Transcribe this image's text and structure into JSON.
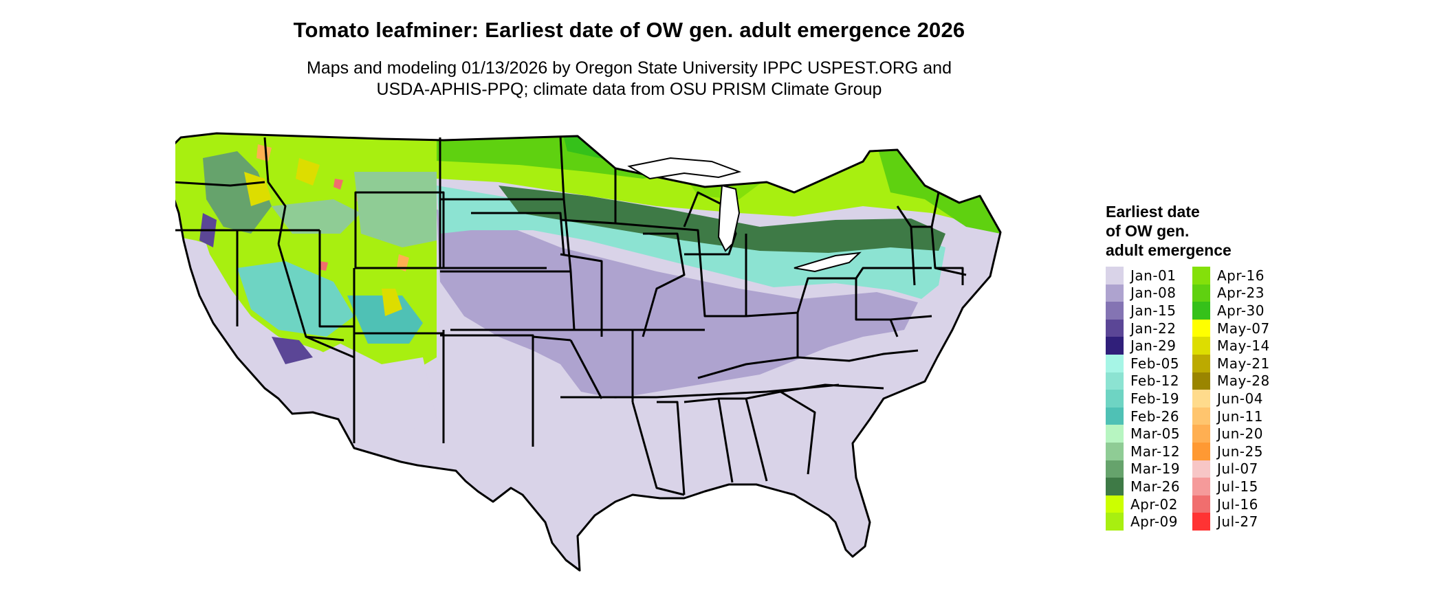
{
  "title": "Tomato leafminer: Earliest date of OW gen. adult emergence 2026",
  "subtitle_lines": [
    "Maps and modeling 01/13/2026 by Oregon State University IPPC USPEST.ORG and",
    "USDA-APHIS-PPQ; climate data from OSU PRISM Climate Group"
  ],
  "legend": {
    "title_lines": [
      "Earliest date",
      "of OW gen.",
      "adult emergence"
    ],
    "columns": [
      [
        {
          "label": "Jan-01",
          "color": "#d9d3e8"
        },
        {
          "label": "Jan-08",
          "color": "#aea3cf"
        },
        {
          "label": "Jan-15",
          "color": "#8474b3"
        },
        {
          "label": "Jan-22",
          "color": "#5b4696"
        },
        {
          "label": "Jan-29",
          "color": "#301f7a"
        },
        {
          "label": "Feb-05",
          "color": "#a6f5e6"
        },
        {
          "label": "Feb-12",
          "color": "#8ce3d2"
        },
        {
          "label": "Feb-19",
          "color": "#6ed4c3"
        },
        {
          "label": "Feb-26",
          "color": "#4fc1b5"
        },
        {
          "label": "Mar-05",
          "color": "#b7f5c1"
        },
        {
          "label": "Mar-12",
          "color": "#8fcc95"
        },
        {
          "label": "Mar-19",
          "color": "#66a36c"
        },
        {
          "label": "Mar-26",
          "color": "#3e7a46"
        },
        {
          "label": "Apr-02",
          "color": "#ccff00"
        },
        {
          "label": "Apr-09",
          "color": "#a8ef10"
        }
      ],
      [
        {
          "label": "Apr-16",
          "color": "#84e00a"
        },
        {
          "label": "Apr-23",
          "color": "#5fd110"
        },
        {
          "label": "Apr-30",
          "color": "#35c11a"
        },
        {
          "label": "May-07",
          "color": "#ffff00"
        },
        {
          "label": "May-14",
          "color": "#dddd00"
        },
        {
          "label": "May-21",
          "color": "#bcaa00"
        },
        {
          "label": "May-28",
          "color": "#9a8500"
        },
        {
          "label": "Jun-04",
          "color": "#ffdb8c"
        },
        {
          "label": "Jun-11",
          "color": "#ffc56e"
        },
        {
          "label": "Jun-20",
          "color": "#ffaf52"
        },
        {
          "label": "Jun-25",
          "color": "#ff9933"
        },
        {
          "label": "Jul-07",
          "color": "#f7c6c6"
        },
        {
          "label": "Jul-15",
          "color": "#f59a9a"
        },
        {
          "label": "Jul-16",
          "color": "#f06e6e"
        },
        {
          "label": "Jul-27",
          "color": "#ff3333"
        }
      ]
    ]
  }
}
